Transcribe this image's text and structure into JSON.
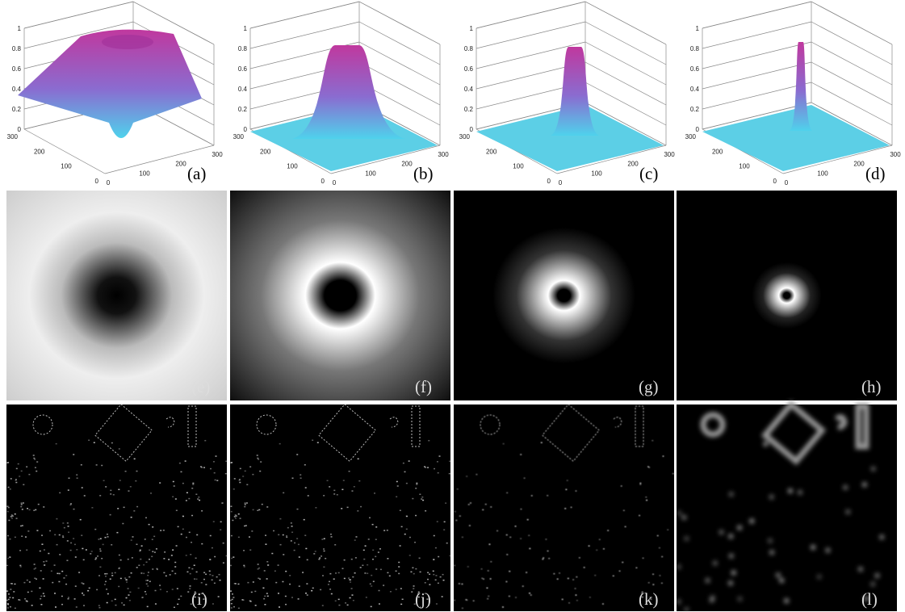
{
  "surface_plots": {
    "z_ticks": [
      0,
      0.2,
      0.4,
      0.6,
      0.8,
      1
    ],
    "y_ticks": [
      0,
      100,
      200,
      300
    ],
    "x_ticks": [
      0,
      100,
      200,
      300
    ]
  },
  "panels": [
    "(a)",
    "(b)",
    "(c)",
    "(d)",
    "(e)",
    "(f)",
    "(g)",
    "(h)",
    "(i)",
    "(j)",
    "(k)",
    "(l)"
  ]
}
